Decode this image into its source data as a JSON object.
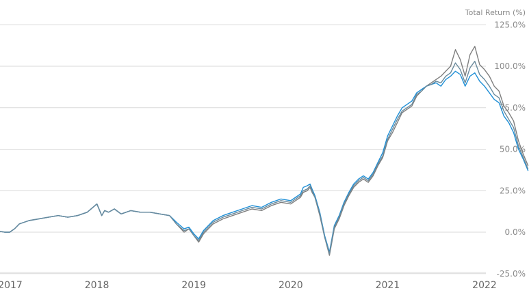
{
  "chart_data": {
    "type": "line",
    "title": "",
    "ylabel": "Total Return (%)",
    "xlabel": "",
    "ylim": [
      -25,
      125
    ],
    "yticks": [
      "-25.0%",
      "0.0%",
      "25.0%",
      "50.0%",
      "75.0%",
      "100.0%",
      "125.0%"
    ],
    "ytick_values": [
      -25,
      0,
      25,
      50,
      75,
      100,
      125
    ],
    "xticks": [
      "2017",
      "2018",
      "2019",
      "2020",
      "2021",
      "2022"
    ],
    "xtick_values": [
      2017,
      2018,
      2019,
      2020,
      2021,
      2022
    ],
    "xlim": [
      2017.0,
      2022.48
    ],
    "grid": true,
    "legend": "none",
    "series": [
      {
        "color": "#7f7f7f",
        "x": [
          2017.0,
          2017.05,
          2017.1,
          2017.15,
          2017.2,
          2017.3,
          2017.4,
          2017.5,
          2017.6,
          2017.7,
          2017.8,
          2017.9,
          2018.0,
          2018.05,
          2018.08,
          2018.12,
          2018.18,
          2018.25,
          2018.35,
          2018.45,
          2018.55,
          2018.65,
          2018.75,
          2018.82,
          2018.9,
          2018.95,
          2019.0,
          2019.05,
          2019.1,
          2019.15,
          2019.2,
          2019.3,
          2019.4,
          2019.5,
          2019.6,
          2019.7,
          2019.8,
          2019.9,
          2020.0,
          2020.05,
          2020.1,
          2020.13,
          2020.17,
          2020.2,
          2020.22,
          2020.25,
          2020.3,
          2020.35,
          2020.4,
          2020.45,
          2020.5,
          2020.55,
          2020.6,
          2020.65,
          2020.7,
          2020.75,
          2020.8,
          2020.85,
          2020.9,
          2020.95,
          2021.0,
          2021.05,
          2021.1,
          2021.15,
          2021.2,
          2021.25,
          2021.3,
          2021.35,
          2021.4,
          2021.45,
          2021.5,
          2021.55,
          2021.6,
          2021.65,
          2021.7,
          2021.75,
          2021.8,
          2021.85,
          2021.9,
          2021.95,
          2022.0,
          2022.05,
          2022.1,
          2022.15,
          2022.2,
          2022.25,
          2022.3,
          2022.35,
          2022.4,
          2022.45
        ],
        "y": [
          0.5,
          0,
          0,
          2,
          5,
          7,
          8,
          9,
          10,
          9,
          10,
          12,
          17,
          10,
          13,
          12,
          14,
          11,
          13,
          12,
          12,
          11,
          10,
          5,
          0,
          2,
          -2,
          -6,
          -1,
          2,
          5,
          8,
          10,
          12,
          14,
          13,
          16,
          18,
          17,
          19,
          21,
          24,
          25,
          27,
          24,
          21,
          10,
          -3,
          -14,
          2,
          8,
          16,
          22,
          27,
          30,
          32,
          30,
          34,
          40,
          45,
          55,
          60,
          66,
          72,
          74,
          76,
          82,
          85,
          88,
          90,
          92,
          94,
          97,
          100,
          110,
          104,
          94,
          107,
          112,
          101,
          98,
          94,
          88,
          85,
          76,
          72,
          67,
          55,
          47,
          40
        ]
      },
      {
        "color": "#1f8fd6",
        "x": [
          2017.0,
          2017.05,
          2017.1,
          2017.15,
          2017.2,
          2017.3,
          2017.4,
          2017.5,
          2017.6,
          2017.7,
          2017.8,
          2017.9,
          2018.0,
          2018.05,
          2018.08,
          2018.12,
          2018.18,
          2018.25,
          2018.35,
          2018.45,
          2018.55,
          2018.65,
          2018.75,
          2018.82,
          2018.9,
          2018.95,
          2019.0,
          2019.05,
          2019.1,
          2019.15,
          2019.2,
          2019.3,
          2019.4,
          2019.5,
          2019.6,
          2019.7,
          2019.8,
          2019.9,
          2020.0,
          2020.05,
          2020.1,
          2020.13,
          2020.17,
          2020.2,
          2020.22,
          2020.25,
          2020.3,
          2020.35,
          2020.4,
          2020.45,
          2020.5,
          2020.55,
          2020.6,
          2020.65,
          2020.7,
          2020.75,
          2020.8,
          2020.85,
          2020.9,
          2020.95,
          2021.0,
          2021.05,
          2021.1,
          2021.15,
          2021.2,
          2021.25,
          2021.3,
          2021.35,
          2021.4,
          2021.45,
          2021.5,
          2021.55,
          2021.6,
          2021.65,
          2021.7,
          2021.75,
          2021.8,
          2021.85,
          2021.9,
          2021.95,
          2022.0,
          2022.05,
          2022.1,
          2022.15,
          2022.2,
          2022.25,
          2022.3,
          2022.35,
          2022.4,
          2022.45
        ],
        "y": [
          0.5,
          0,
          0,
          2,
          5,
          7,
          8,
          9,
          10,
          9,
          10,
          12,
          17,
          10,
          13,
          12,
          14,
          11,
          13,
          12,
          12,
          11,
          10,
          6,
          2,
          3,
          -1,
          -4,
          1,
          4,
          7,
          10,
          12,
          14,
          16,
          15,
          18,
          20,
          19,
          21,
          23,
          27,
          28,
          29,
          26,
          22,
          12,
          -2,
          -12,
          4,
          10,
          18,
          24,
          29,
          32,
          34,
          32,
          36,
          42,
          48,
          58,
          64,
          70,
          75,
          77,
          79,
          84,
          86,
          88,
          89,
          90,
          88,
          92,
          94,
          97,
          95,
          88,
          94,
          96,
          91,
          88,
          84,
          80,
          78,
          70,
          66,
          60,
          50,
          44,
          37
        ]
      },
      {
        "color": "#6a8a9c",
        "x": [
          2017.0,
          2017.05,
          2017.1,
          2017.15,
          2017.2,
          2017.3,
          2017.4,
          2017.5,
          2017.6,
          2017.7,
          2017.8,
          2017.9,
          2018.0,
          2018.05,
          2018.08,
          2018.12,
          2018.18,
          2018.25,
          2018.35,
          2018.45,
          2018.55,
          2018.65,
          2018.75,
          2018.82,
          2018.9,
          2018.95,
          2019.0,
          2019.05,
          2019.1,
          2019.15,
          2019.2,
          2019.3,
          2019.4,
          2019.5,
          2019.6,
          2019.7,
          2019.8,
          2019.9,
          2020.0,
          2020.05,
          2020.1,
          2020.13,
          2020.17,
          2020.2,
          2020.22,
          2020.25,
          2020.3,
          2020.35,
          2020.4,
          2020.45,
          2020.5,
          2020.55,
          2020.6,
          2020.65,
          2020.7,
          2020.75,
          2020.8,
          2020.85,
          2020.9,
          2020.95,
          2021.0,
          2021.05,
          2021.1,
          2021.15,
          2021.2,
          2021.25,
          2021.3,
          2021.35,
          2021.4,
          2021.45,
          2021.5,
          2021.55,
          2021.6,
          2021.65,
          2021.7,
          2021.75,
          2021.8,
          2021.85,
          2021.9,
          2021.95,
          2022.0,
          2022.05,
          2022.1,
          2022.15,
          2022.2,
          2022.25,
          2022.3,
          2022.35,
          2022.4,
          2022.45
        ],
        "y": [
          0.5,
          0,
          0,
          2,
          5,
          7,
          8,
          9,
          10,
          9,
          10,
          12,
          17,
          10,
          13,
          12,
          14,
          11,
          13,
          12,
          12,
          11,
          10,
          5,
          1,
          2,
          -2,
          -5,
          0,
          3,
          6,
          9,
          11,
          13,
          15,
          14,
          17,
          19,
          18,
          20,
          22,
          25,
          26,
          28,
          25,
          21,
          11,
          -3,
          -13,
          3,
          9,
          17,
          23,
          28,
          31,
          33,
          31,
          35,
          41,
          46,
          56,
          62,
          68,
          73,
          75,
          77,
          83,
          85,
          88,
          89,
          91,
          90,
          94,
          96,
          102,
          98,
          90,
          99,
          103,
          95,
          92,
          88,
          83,
          81,
          73,
          68,
          63,
          52,
          45,
          38
        ]
      }
    ]
  }
}
